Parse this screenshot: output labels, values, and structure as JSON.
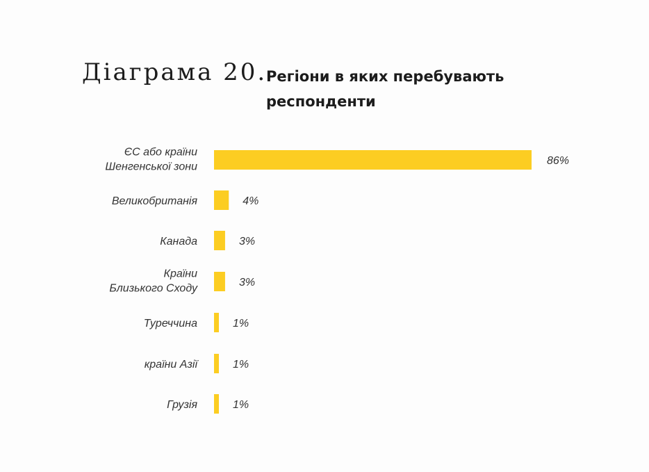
{
  "heading": {
    "label": "Діаграма 20.",
    "title": "Регіони в яких перебувають респонденти"
  },
  "chart_data": {
    "type": "bar",
    "orientation": "horizontal",
    "categories": [
      [
        "ЄС  або країни",
        "Шенгенської зони"
      ],
      [
        "Великобританія"
      ],
      [
        "Канада"
      ],
      [
        "Країни",
        "Близького Сходу"
      ],
      [
        "Туреччина"
      ],
      [
        "країни Азії"
      ],
      [
        "Грузія"
      ]
    ],
    "values": [
      86,
      4,
      3,
      3,
      1,
      1,
      1
    ],
    "value_labels": [
      "86%",
      "4%",
      "3%",
      "3%",
      "1%",
      "1%",
      "1%"
    ],
    "unit": "%",
    "xlim": [
      0,
      86
    ],
    "grid": false,
    "bar_color": "#fccd22"
  }
}
